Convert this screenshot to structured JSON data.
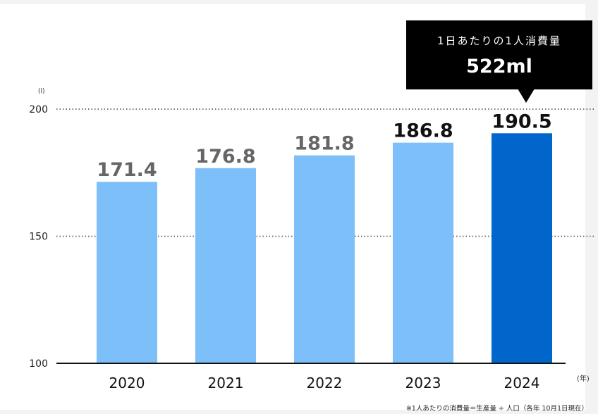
{
  "chart_data": {
    "type": "bar",
    "categories": [
      "2020",
      "2021",
      "2022",
      "2023",
      "2024"
    ],
    "values": [
      171.4,
      176.8,
      181.8,
      186.8,
      190.5
    ],
    "value_labels": [
      "171.4",
      "176.8",
      "181.8",
      "186.8",
      "190.5"
    ],
    "y_unit": "(l)",
    "x_unit": "(年)",
    "yticks": [
      100,
      150,
      200
    ],
    "ylim": [
      100,
      200
    ],
    "grid": "dotted",
    "bar_colors": [
      "#7dbff9",
      "#7dbff9",
      "#7dbff9",
      "#7dbff9",
      "#0066cc"
    ],
    "value_label_colors": [
      "#666666",
      "#666666",
      "#666666",
      "#111111",
      "#111111"
    ]
  },
  "callout": {
    "label": "1日あたりの1人消費量",
    "value": "522ml"
  },
  "footnote": "※1人あたりの消費量＝生産量 ÷ 人口（各年 10月1日現在）"
}
